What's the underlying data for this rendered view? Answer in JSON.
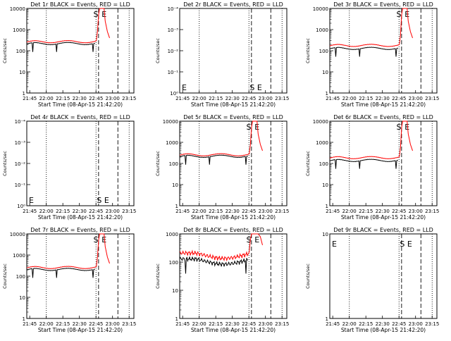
{
  "shared": {
    "time_ticks": [
      "21:45",
      "22:00",
      "22:15",
      "22:30",
      "22:45",
      "23:00",
      "23:15"
    ],
    "xlabel": "Start Time (08-Apr-15 21:42:20)",
    "ylabel": "Counts/sec"
  },
  "chart_data": [
    {
      "type": "line",
      "title": "Det 1r BLACK = Events, RED = LLD",
      "xlabel": "Start Time (08-Apr-15 21:42:20)",
      "ylabel": "Counts/sec",
      "yscale": "log",
      "ylim": [
        1,
        10000
      ],
      "ytick_labels": [
        "1",
        "10",
        "100",
        "1000",
        "10000"
      ],
      "markers": [
        "S",
        "E"
      ],
      "series": [
        {
          "name": "Events",
          "color": "#000000",
          "profile": "normal",
          "level": 220
        },
        {
          "name": "LLD",
          "color": "#ff0000",
          "profile": "normal",
          "level": 270
        }
      ]
    },
    {
      "type": "line",
      "title": "Det 2r BLACK = Events, RED = LLD",
      "xlabel": "Start Time (08-Apr-15 21:42:20)",
      "ylabel": "Counts/sec",
      "yscale": "log",
      "ylim": [
        1,
        10000
      ],
      "ytick_labels": [
        "10⁰",
        "10⁻¹",
        "10⁻²",
        "10⁻³",
        "10⁻⁴"
      ],
      "markers": [
        "E",
        "S E"
      ],
      "series": []
    },
    {
      "type": "line",
      "title": "Det 3r BLACK = Events, RED = LLD",
      "xlabel": "Start Time (08-Apr-15 21:42:20)",
      "ylabel": "Counts/sec",
      "yscale": "log",
      "ylim": [
        1,
        10000
      ],
      "ytick_labels": [
        "1",
        "10",
        "100",
        "1000",
        "10000"
      ],
      "markers": [
        "S",
        "E"
      ],
      "series": [
        {
          "name": "Events",
          "color": "#000000",
          "profile": "normal",
          "level": 130
        },
        {
          "name": "LLD",
          "color": "#ff0000",
          "profile": "normal",
          "level": 180
        }
      ]
    },
    {
      "type": "line",
      "title": "Det 4r BLACK = Events, RED = LLD",
      "xlabel": "Start Time (08-Apr-15 21:42:20)",
      "ylabel": "Counts/sec",
      "yscale": "log",
      "ylim": [
        1,
        10000
      ],
      "ytick_labels": [
        "10⁰",
        "10⁻¹",
        "10⁻²",
        "10⁻³",
        "10⁻⁴"
      ],
      "markers": [
        "E",
        "S E"
      ],
      "series": []
    },
    {
      "type": "line",
      "title": "Det 5r BLACK = Events, RED = LLD",
      "xlabel": "Start Time (08-Apr-15 21:42:20)",
      "ylabel": "Counts/sec",
      "yscale": "log",
      "ylim": [
        1,
        10000
      ],
      "ytick_labels": [
        "1",
        "10",
        "100",
        "1000",
        "10000"
      ],
      "markers": [
        "S",
        "E"
      ],
      "series": [
        {
          "name": "Events",
          "color": "#000000",
          "profile": "normal",
          "level": 220
        },
        {
          "name": "LLD",
          "color": "#ff0000",
          "profile": "normal",
          "level": 260
        }
      ]
    },
    {
      "type": "line",
      "title": "Det 6r BLACK = Events, RED = LLD",
      "xlabel": "Start Time (08-Apr-15 21:42:20)",
      "ylabel": "Counts/sec",
      "yscale": "log",
      "ylim": [
        1,
        10000
      ],
      "ytick_labels": [
        "1",
        "10",
        "100",
        "1000",
        "10000"
      ],
      "markers": [
        "S",
        "E"
      ],
      "series": [
        {
          "name": "Events",
          "color": "#000000",
          "profile": "normal",
          "level": 140
        },
        {
          "name": "LLD",
          "color": "#ff0000",
          "profile": "normal",
          "level": 190
        }
      ]
    },
    {
      "type": "line",
      "title": "Det 7r BLACK = Events, RED = LLD",
      "xlabel": "Start Time (08-Apr-15 21:42:20)",
      "ylabel": "Counts/sec",
      "yscale": "log",
      "ylim": [
        1,
        10000
      ],
      "ytick_labels": [
        "1",
        "10",
        "100",
        "1000",
        "10000"
      ],
      "markers": [
        "S",
        "E"
      ],
      "series": [
        {
          "name": "Events",
          "color": "#000000",
          "profile": "normal",
          "level": 210
        },
        {
          "name": "LLD",
          "color": "#ff0000",
          "profile": "normal",
          "level": 260
        }
      ]
    },
    {
      "type": "line",
      "title": "Det 8r BLACK = Events, RED = LLD",
      "xlabel": "Start Time (08-Apr-15 21:42:20)",
      "ylabel": "Counts/sec",
      "yscale": "log",
      "ylim": [
        1,
        1000
      ],
      "ytick_labels": [
        "1",
        "10",
        "100",
        "1000"
      ],
      "markers": [
        "S",
        "E"
      ],
      "series": [
        {
          "name": "Events",
          "color": "#000000",
          "profile": "noisy",
          "level": 130
        },
        {
          "name": "LLD",
          "color": "#ff0000",
          "profile": "noisy",
          "level": 210
        }
      ]
    },
    {
      "type": "line",
      "title": "Det 9r BLACK = Events, RED = LLD",
      "xlabel": "Start Time (08-Apr-15 21:42:20)",
      "ylabel": "Counts/sec",
      "yscale": "log",
      "ylim": [
        1,
        10
      ],
      "ytick_labels": [
        "1",
        "10"
      ],
      "markers": [
        "E",
        "S E"
      ],
      "series": []
    }
  ]
}
